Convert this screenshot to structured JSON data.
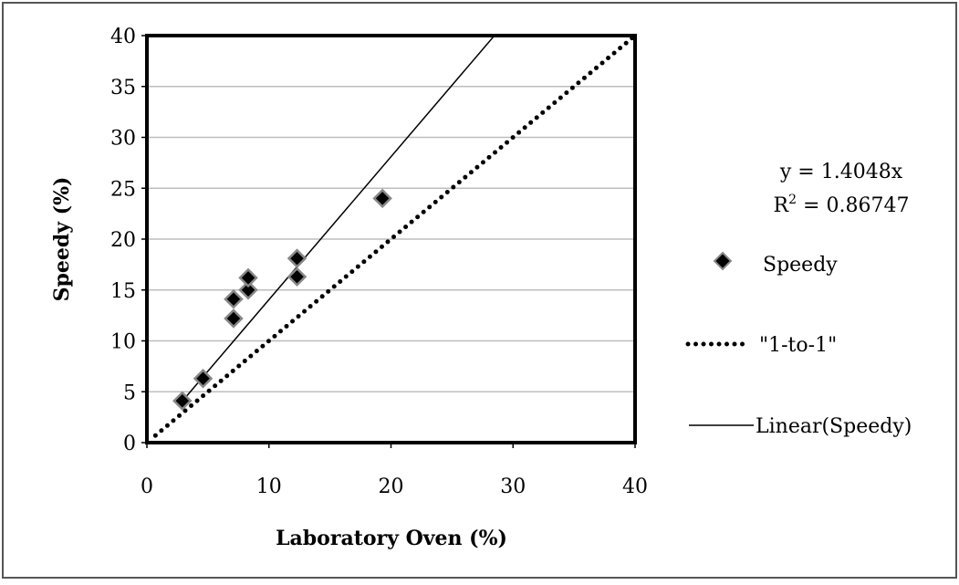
{
  "chart_data": {
    "type": "scatter",
    "xlabel": "Laboratory Oven (%)",
    "ylabel": "Speedy (%)",
    "xlim": [
      0,
      40
    ],
    "ylim": [
      0,
      40
    ],
    "xticks": [
      0,
      10,
      20,
      30,
      40
    ],
    "yticks": [
      0,
      5,
      10,
      15,
      20,
      25,
      30,
      35,
      40
    ],
    "grid": "horizontal",
    "legend_position": "right",
    "series": [
      {
        "name": "Speedy",
        "kind": "scatter",
        "marker": "diamond",
        "points": [
          [
            2.9,
            4.1
          ],
          [
            4.6,
            6.3
          ],
          [
            7.1,
            12.2
          ],
          [
            7.1,
            14.1
          ],
          [
            8.3,
            15.0
          ],
          [
            8.3,
            16.2
          ],
          [
            12.3,
            16.3
          ],
          [
            12.3,
            18.1
          ],
          [
            19.3,
            24.0
          ]
        ]
      },
      {
        "name": "\"1-to-1\"",
        "kind": "line",
        "style": "dotted",
        "slope": 1
      },
      {
        "name": "Linear(Speedy)",
        "kind": "line",
        "style": "solid",
        "slope": 1.4048
      }
    ],
    "trendline_equation": "y = 1.4048x",
    "r_squared_label": "R",
    "r_squared_superscript": "2",
    "r_squared_value": " = 0.86747",
    "colors": {
      "marker_fill": "#000000",
      "marker_outline": "#888888",
      "lines": "#000000",
      "grid": "#bdbdbd"
    }
  }
}
